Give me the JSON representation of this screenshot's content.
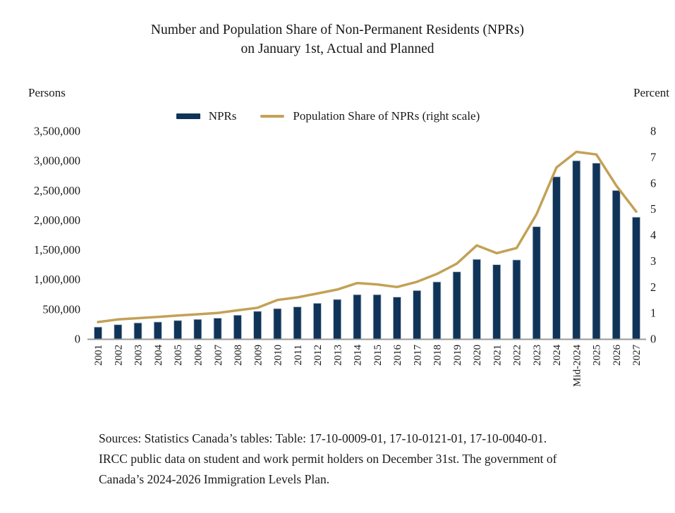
{
  "title": {
    "line1": "Number and Population Share of Non-Permanent Residents (NPRs)",
    "line2": "on January 1st, Actual and Planned"
  },
  "left_axis_unit": "Persons",
  "right_axis_unit": "Percent",
  "legend": [
    {
      "label": "NPRs",
      "type": "bar"
    },
    {
      "label": "Population Share of NPRs (right scale)",
      "type": "line"
    }
  ],
  "colors": {
    "bar": "#103458",
    "bar_edge": "#b7c3d2",
    "line": "#c3a155",
    "axis": "#999999",
    "text": "#1a1a1a"
  },
  "chart_data": {
    "type": "bar",
    "title": "Number and Population Share of Non-Permanent Residents (NPRs) on January 1st, Actual and Planned",
    "grid": false,
    "legend_position": "top-center",
    "categories": [
      "2001",
      "2002",
      "2003",
      "2004",
      "2005",
      "2006",
      "2007",
      "2008",
      "2009",
      "2010",
      "2011",
      "2012",
      "2013",
      "2014",
      "2015",
      "2016",
      "2017",
      "2018",
      "2019",
      "2020",
      "2021",
      "2022",
      "2023",
      "2024",
      "Mid-2024",
      "2025",
      "2026",
      "2027"
    ],
    "series": [
      {
        "name": "NPRs",
        "type": "bar",
        "axis": "left",
        "values": [
          200000,
          240000,
          270000,
          285000,
          310000,
          330000,
          350000,
          400000,
          465000,
          510000,
          540000,
          600000,
          665000,
          745000,
          745000,
          705000,
          815000,
          960000,
          1130000,
          1340000,
          1250000,
          1330000,
          1890000,
          2730000,
          3000000,
          2960000,
          2500000,
          2050000
        ]
      },
      {
        "name": "Population Share of NPRs (right scale)",
        "type": "line",
        "axis": "right",
        "values": [
          0.65,
          0.75,
          0.8,
          0.85,
          0.9,
          0.95,
          1.0,
          1.1,
          1.2,
          1.5,
          1.6,
          1.75,
          1.9,
          2.15,
          2.1,
          2.0,
          2.2,
          2.5,
          2.9,
          3.6,
          3.3,
          3.5,
          4.8,
          6.6,
          7.2,
          7.1,
          5.9,
          4.9
        ]
      }
    ],
    "left_axis": {
      "label": "Persons",
      "min": 0,
      "max": 3500000,
      "tick_step": 500000,
      "tick_labels": [
        "0",
        "500,000",
        "1,000,000",
        "1,500,000",
        "2,000,000",
        "2,500,000",
        "3,000,000",
        "3,500,000"
      ]
    },
    "right_axis": {
      "label": "Percent",
      "min": 0,
      "max": 8,
      "tick_step": 1,
      "tick_labels": [
        "0",
        "1",
        "2",
        "3",
        "4",
        "5",
        "6",
        "7",
        "8"
      ]
    }
  },
  "footer": {
    "lines": [
      "Sources: Statistics Canada’s tables: Table: 17-10-0009-01, 17-10-0121-01, 17-10-0040-01.",
      "IRCC public data on student and work permit holders on December 31st. The government of",
      "Canada’s 2024-2026 Immigration Levels Plan."
    ]
  }
}
